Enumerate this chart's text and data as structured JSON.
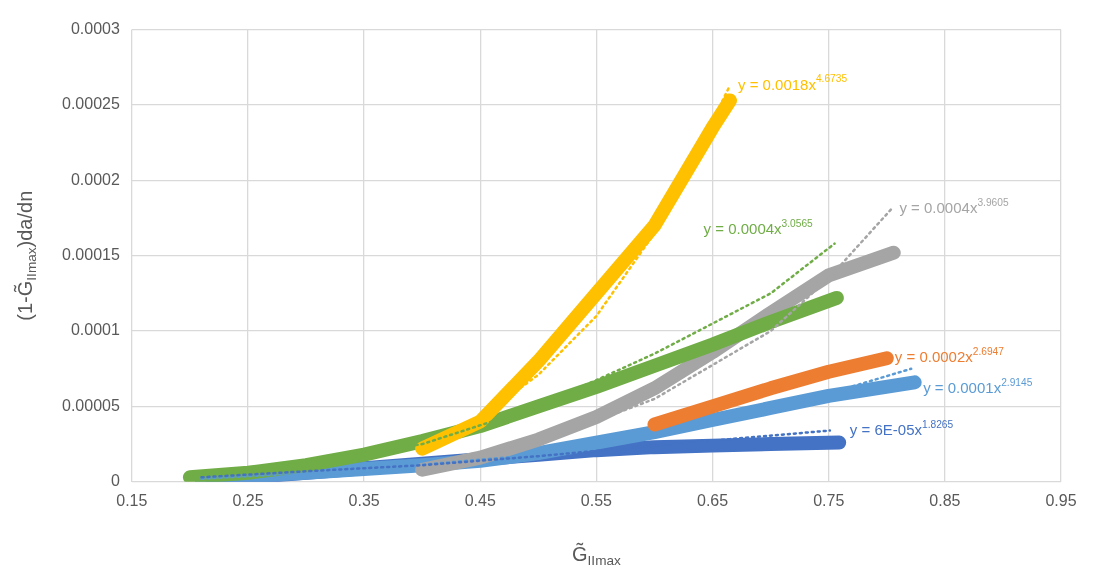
{
  "chart_data": {
    "type": "line",
    "xlabel": "G̃$_{IImax}$",
    "ylabel": "(1-G̃$_{IImax}$)da/dn",
    "xlim": [
      0.15,
      0.95
    ],
    "xticks": [
      0.15,
      0.25,
      0.35,
      0.45,
      0.55,
      0.65,
      0.75,
      0.85,
      0.95
    ],
    "ylim": [
      0,
      0.0003
    ],
    "yticks": [
      0,
      {
        "value": 5e-05,
        "label": "0.00005"
      },
      0.0001,
      0.00015,
      0.0002,
      0.00025,
      0.0003
    ],
    "grid": true,
    "marker": "none",
    "series": [
      {
        "color": "#4472c4",
        "x": [
          0.22,
          0.3,
          0.35,
          0.4,
          0.45,
          0.5,
          0.55,
          0.6,
          0.65,
          0.7,
          0.759
        ],
        "values": [
          1e-06,
          6e-06,
          9e-06,
          1.2e-05,
          1.5e-05,
          1.8e-05,
          2.1e-05,
          2.3e-05,
          2.4e-05,
          2.5e-05,
          2.6e-05
        ]
      },
      {
        "color": "#5b9bd5",
        "x": [
          0.21,
          0.3,
          0.4,
          0.45,
          0.5,
          0.55,
          0.6,
          0.65,
          0.7,
          0.75,
          0.824
        ],
        "values": [
          2e-06,
          6e-06,
          1.1e-05,
          1.4e-05,
          1.9e-05,
          2.6e-05,
          3.3e-05,
          4.1e-05,
          4.9e-05,
          5.7e-05,
          6.6e-05
        ]
      },
      {
        "name": "y = 0.0002x$^{2.6947}$",
        "color": "#ed7d31",
        "x": [
          0.6,
          0.65,
          0.7,
          0.75,
          0.8
        ],
        "values": [
          3.8e-05,
          5e-05,
          6.2e-05,
          7.3e-05,
          8.2e-05
        ]
      },
      {
        "color": "#a5a5a5",
        "x": [
          0.4,
          0.45,
          0.5,
          0.55,
          0.6,
          0.65,
          0.7,
          0.75,
          0.806
        ],
        "values": [
          8e-06,
          1.6e-05,
          2.8e-05,
          4.3e-05,
          6.2e-05,
          8.6e-05,
          0.000112,
          0.000137,
          0.000152
        ]
      },
      {
        "color": "#70ad47",
        "x": [
          0.2,
          0.25,
          0.3,
          0.35,
          0.4,
          0.45,
          0.5,
          0.55,
          0.6,
          0.65,
          0.7,
          0.757
        ],
        "values": [
          3e-06,
          6e-06,
          1.1e-05,
          1.8e-05,
          2.7e-05,
          3.7e-05,
          5e-05,
          6.3e-05,
          7.7e-05,
          9.1e-05,
          0.000106,
          0.000122
        ]
      },
      {
        "color": "#ffc000",
        "x": [
          0.4,
          0.45,
          0.5,
          0.55,
          0.6,
          0.65,
          0.665
        ],
        "values": [
          2.2e-05,
          4e-05,
          8e-05,
          0.000125,
          0.00017,
          0.000235,
          0.000253
        ]
      },
      {
        "name": "y = 6E-05x$^{1.8265}$",
        "color": "#4472c4",
        "line_style": "dotted",
        "x": [
          0.21,
          0.3,
          0.4,
          0.5,
          0.6,
          0.751
        ],
        "values": [
          3e-06,
          7e-06,
          1.1e-05,
          1.7e-05,
          2.4e-05,
          3.4e-05
        ]
      },
      {
        "name": "y = 0.0001x$^{2.9145}$",
        "color": "#5b9bd5",
        "line_style": "dotted",
        "x": [
          0.21,
          0.35,
          0.53,
          0.7,
          0.821
        ],
        "values": [
          2e-06,
          8e-06,
          2e-05,
          4.7e-05,
          7.5e-05
        ]
      },
      {
        "name": "y = 0.0004x$^{3.9605}$",
        "color": "#a5a5a5",
        "line_style": "dotted",
        "x": [
          0.4,
          0.5,
          0.6,
          0.7,
          0.75,
          0.804
        ],
        "values": [
          1.1e-05,
          2.6e-05,
          5.5e-05,
          0.0001,
          0.000135,
          0.000181
        ]
      },
      {
        "name": "y = 0.0004x$^{3.0565}$",
        "color": "#70ad47",
        "line_style": "dotted",
        "x": [
          0.2,
          0.4,
          0.5,
          0.6,
          0.7,
          0.755
        ],
        "values": [
          3e-06,
          2.5e-05,
          5e-05,
          8.5e-05,
          0.000125,
          0.000158
        ]
      },
      {
        "name": "y = 0.0018x$^{4.6735}$",
        "color": "#ffc000",
        "line_style": "dotted",
        "x": [
          0.4,
          0.45,
          0.5,
          0.55,
          0.6,
          0.63,
          0.665
        ],
        "values": [
          2.5e-05,
          4.3e-05,
          7.1e-05,
          0.00011,
          0.000165,
          0.000208,
          0.000263
        ]
      }
    ]
  }
}
